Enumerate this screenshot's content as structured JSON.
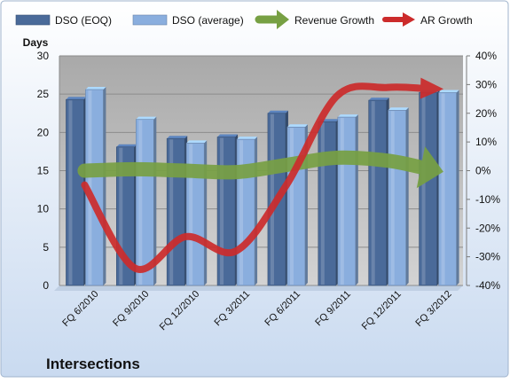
{
  "chart_data": {
    "type": "bar",
    "title": "Intersections",
    "y_axis_label": "Days",
    "categories": [
      "FQ 6/2010",
      "FQ 9/2010",
      "FQ 12/2010",
      "FQ 3/2011",
      "FQ 6/2011",
      "FQ 9/2011",
      "FQ 12/2011",
      "FQ 3/2012"
    ],
    "ylim": [
      0,
      30
    ],
    "y_ticks": [
      0,
      5,
      10,
      15,
      20,
      25,
      30
    ],
    "y2lim": [
      -0.4,
      0.4
    ],
    "y2_ticks": [
      -0.4,
      -0.3,
      -0.2,
      -0.1,
      0,
      0.1,
      0.2,
      0.3,
      0.4
    ],
    "y2_tick_labels": [
      "-40%",
      "-30%",
      "-20%",
      "-10%",
      "0%",
      "10%",
      "20%",
      "30%",
      "40%"
    ],
    "legend_position": "top",
    "grid": true,
    "series": [
      {
        "name": "DSO (EOQ)",
        "kind": "bar",
        "axis": "left",
        "color": "#4a6a99",
        "values": [
          24.3,
          18.1,
          19.2,
          19.4,
          22.5,
          21.4,
          24.2,
          25.2
        ]
      },
      {
        "name": "DSO (average)",
        "kind": "bar",
        "axis": "left",
        "color": "#8aaede",
        "values": [
          25.6,
          21.7,
          18.6,
          19.1,
          20.7,
          22.0,
          22.9,
          25.2
        ]
      },
      {
        "name": "Revenue Growth",
        "kind": "arrow-line",
        "axis": "right",
        "color": "#77a043",
        "values": [
          0.0,
          0.005,
          0.0,
          -0.005,
          0.02,
          0.045,
          0.035,
          0.0
        ]
      },
      {
        "name": "AR Growth",
        "kind": "arrow-line",
        "axis": "right",
        "color": "#cc2b2b",
        "values": [
          -0.05,
          -0.34,
          -0.23,
          -0.28,
          -0.05,
          0.26,
          0.29,
          0.285
        ]
      }
    ],
    "colors": {
      "plot_background": "#c0c0c0",
      "frame_gradient_top": "#ffffff",
      "frame_gradient_bottom": "#c9daf0",
      "border": "#9fb3cc",
      "text": "#111111"
    }
  }
}
